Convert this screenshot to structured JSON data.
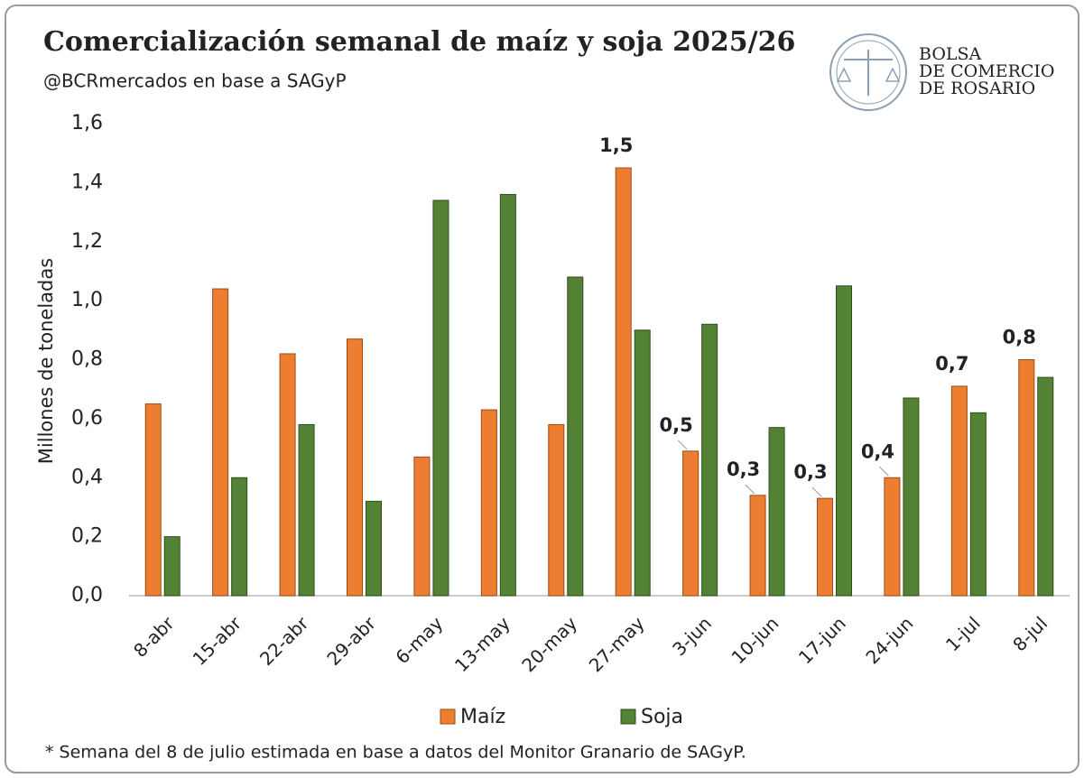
{
  "chart_data": {
    "type": "bar",
    "title": "Comercialización semanal de maíz y soja 2025/26",
    "subtitle": "@BCRmercados  en base a SAGyP",
    "y_label": "Millones de toneladas",
    "footnote": "* Semana del 8 de julio estimada en base a datos del Monitor Granario de SAGyP.",
    "categories": [
      "8-abr",
      "15-abr",
      "22-abr",
      "29-abr",
      "6-may",
      "13-may",
      "20-may",
      "27-may",
      "3-jun",
      "10-jun",
      "17-jun",
      "24-jun",
      "1-jul",
      "8-jul"
    ],
    "series": [
      {
        "name": "Maíz",
        "color": "#ed7d31",
        "values": [
          0.65,
          1.04,
          0.82,
          0.87,
          0.47,
          0.63,
          0.58,
          1.45,
          0.49,
          0.34,
          0.33,
          0.4,
          0.71,
          0.8
        ],
        "value_labels": [
          null,
          null,
          null,
          null,
          null,
          null,
          null,
          "1,5",
          "0,5",
          "0,3",
          "0,3",
          "0,4",
          "0,7",
          "0,8"
        ]
      },
      {
        "name": "Soja",
        "color": "#548235",
        "values": [
          0.2,
          0.4,
          0.58,
          0.32,
          1.34,
          1.36,
          1.08,
          0.9,
          0.92,
          0.57,
          1.05,
          0.67,
          0.62,
          0.74
        ]
      }
    ],
    "ylim": [
      0,
      1.6
    ],
    "yticks": [
      {
        "value": 0,
        "label": "0,0"
      },
      {
        "value": 0.2,
        "label": "0,2"
      },
      {
        "value": 0.4,
        "label": "0,4"
      },
      {
        "value": 0.6,
        "label": "0,6"
      },
      {
        "value": 0.8,
        "label": "0,8"
      },
      {
        "value": 1.0,
        "label": "1,0"
      },
      {
        "value": 1.2,
        "label": "1,2"
      },
      {
        "value": 1.4,
        "label": "1,4"
      },
      {
        "value": 1.6,
        "label": "1,6"
      }
    ],
    "grid": false,
    "legend": "bottom"
  },
  "logo": {
    "lines": [
      "BOLSA",
      "DE COMERCIO",
      "DE ROSARIO"
    ]
  }
}
